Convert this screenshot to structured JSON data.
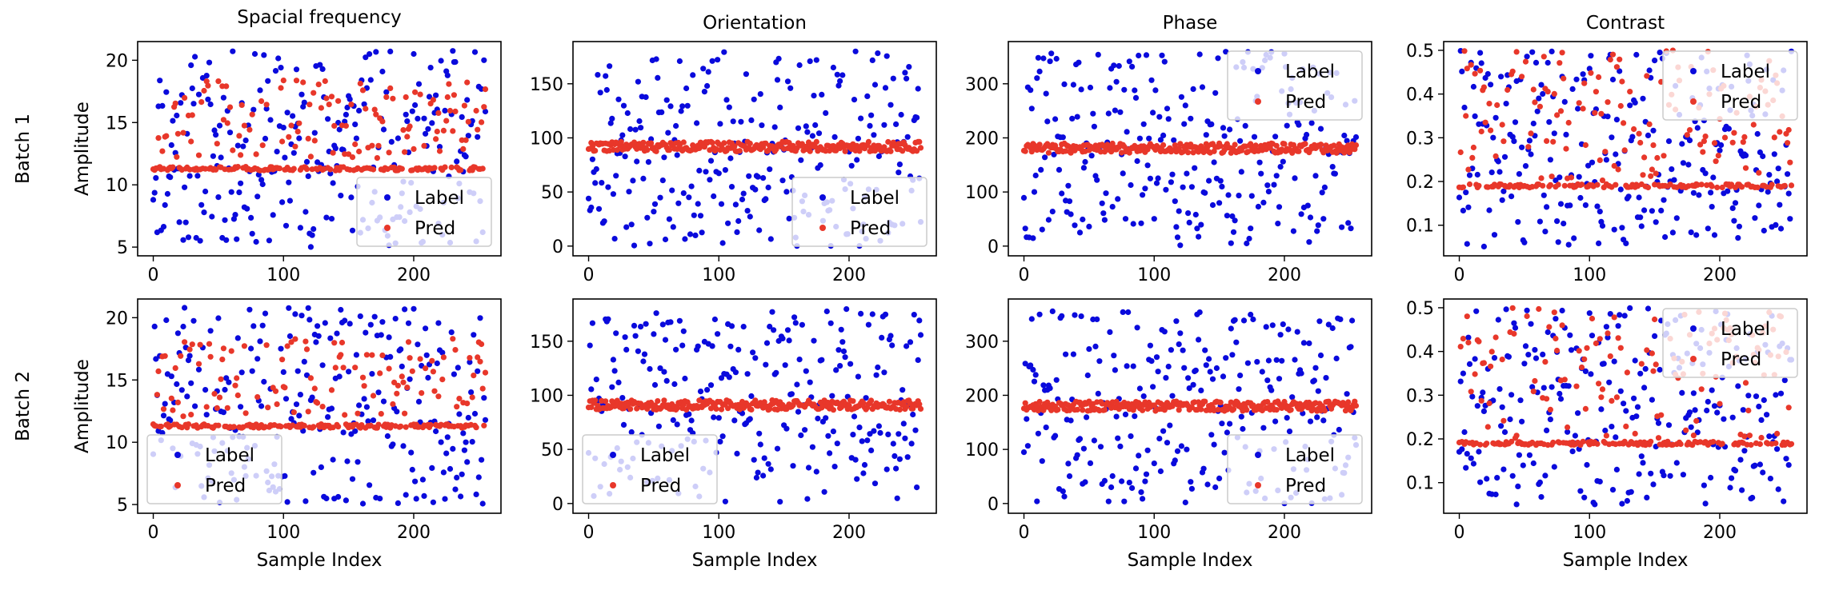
{
  "figure": {
    "row_labels": [
      "Batch 1",
      "Batch 2"
    ],
    "ylabel": "Amplitude",
    "xlabel": "Sample Index",
    "legend": [
      "Label",
      "Pred"
    ],
    "colors": {
      "label": "#0a0adc",
      "pred": "#e8372a"
    },
    "columns": [
      "Spacial frequency",
      "Orientation",
      "Phase",
      "Contrast"
    ]
  },
  "chart_data": [
    {
      "type": "scatter",
      "title": "Spacial frequency",
      "row": "Batch 1",
      "xlabel": "",
      "ylabel": "Amplitude",
      "xlim": [
        -12,
        267
      ],
      "ylim": [
        4.3,
        21.5
      ],
      "xticks": [
        0,
        100,
        200
      ],
      "yticks": [
        5,
        10,
        15,
        20
      ],
      "legend": "lower right",
      "n": 256,
      "series": [
        {
          "name": "Label",
          "style": "uniform",
          "range": [
            5,
            20.8
          ],
          "seed": 11
        },
        {
          "name": "Pred",
          "style": "baseline",
          "base": 11.3,
          "jitter": 0.15,
          "spread": 0.55,
          "high": [
            12,
            18.5
          ],
          "seed": 12
        }
      ]
    },
    {
      "type": "scatter",
      "title": "Orientation",
      "row": "Batch 1",
      "xlabel": "",
      "ylabel": "",
      "xlim": [
        -12,
        267
      ],
      "ylim": [
        -9,
        189
      ],
      "xticks": [
        0,
        100,
        200
      ],
      "yticks": [
        0,
        50,
        100,
        150
      ],
      "legend": "lower right",
      "n": 256,
      "series": [
        {
          "name": "Label",
          "style": "uniform",
          "range": [
            0,
            180
          ],
          "seed": 21
        },
        {
          "name": "Pred",
          "style": "band",
          "base": 92,
          "jitter": 4.5,
          "seed": 22
        }
      ]
    },
    {
      "type": "scatter",
      "title": "Phase",
      "row": "Batch 1",
      "xlabel": "",
      "ylabel": "",
      "xlim": [
        -12,
        267
      ],
      "ylim": [
        -18,
        378
      ],
      "xticks": [
        0,
        100,
        200
      ],
      "yticks": [
        0,
        100,
        200,
        300
      ],
      "legend": "upper right",
      "n": 256,
      "series": [
        {
          "name": "Label",
          "style": "uniform",
          "range": [
            0,
            360
          ],
          "seed": 31
        },
        {
          "name": "Pred",
          "style": "band",
          "base": 181,
          "jitter": 9,
          "seed": 32
        }
      ]
    },
    {
      "type": "scatter",
      "title": "Contrast",
      "row": "Batch 1",
      "xlabel": "",
      "ylabel": "",
      "xlim": [
        -12,
        267
      ],
      "ylim": [
        0.03,
        0.52
      ],
      "xticks": [
        0,
        100,
        200
      ],
      "yticks": [
        0.1,
        0.2,
        0.3,
        0.4,
        0.5
      ],
      "legend": "upper right",
      "n": 256,
      "series": [
        {
          "name": "Label",
          "style": "uniform",
          "range": [
            0.05,
            0.5
          ],
          "seed": 41
        },
        {
          "name": "Pred",
          "style": "baseline",
          "base": 0.19,
          "jitter": 0.004,
          "spread": 0.5,
          "high": [
            0.2,
            0.5
          ],
          "seed": 42
        }
      ]
    },
    {
      "type": "scatter",
      "title": "",
      "row": "Batch 2",
      "xlabel": "Sample Index",
      "ylabel": "Amplitude",
      "xlim": [
        -12,
        267
      ],
      "ylim": [
        4.3,
        21.5
      ],
      "xticks": [
        0,
        100,
        200
      ],
      "yticks": [
        5,
        10,
        15,
        20
      ],
      "legend": "lower left",
      "n": 256,
      "series": [
        {
          "name": "Label",
          "style": "uniform",
          "range": [
            5,
            20.8
          ],
          "seed": 51
        },
        {
          "name": "Pred",
          "style": "baseline",
          "base": 11.3,
          "jitter": 0.15,
          "spread": 0.55,
          "high": [
            12,
            18.5
          ],
          "seed": 52
        }
      ]
    },
    {
      "type": "scatter",
      "title": "",
      "row": "Batch 2",
      "xlabel": "Sample Index",
      "ylabel": "",
      "xlim": [
        -12,
        267
      ],
      "ylim": [
        -9,
        189
      ],
      "xticks": [
        0,
        100,
        200
      ],
      "yticks": [
        0,
        50,
        100,
        150
      ],
      "legend": "lower left",
      "n": 256,
      "series": [
        {
          "name": "Label",
          "style": "uniform",
          "range": [
            0,
            180
          ],
          "seed": 61
        },
        {
          "name": "Pred",
          "style": "band",
          "base": 91,
          "jitter": 4.5,
          "seed": 62
        }
      ]
    },
    {
      "type": "scatter",
      "title": "",
      "row": "Batch 2",
      "xlabel": "Sample Index",
      "ylabel": "",
      "xlim": [
        -12,
        267
      ],
      "ylim": [
        -18,
        378
      ],
      "xticks": [
        0,
        100,
        200
      ],
      "yticks": [
        0,
        100,
        200,
        300
      ],
      "legend": "lower right",
      "n": 256,
      "series": [
        {
          "name": "Label",
          "style": "uniform",
          "range": [
            0,
            360
          ],
          "seed": 71
        },
        {
          "name": "Pred",
          "style": "band",
          "base": 180,
          "jitter": 9,
          "seed": 72
        }
      ]
    },
    {
      "type": "scatter",
      "title": "",
      "row": "Batch 2",
      "xlabel": "Sample Index",
      "ylabel": "",
      "xlim": [
        -12,
        267
      ],
      "ylim": [
        0.03,
        0.52
      ],
      "xticks": [
        0,
        100,
        200
      ],
      "yticks": [
        0.1,
        0.2,
        0.3,
        0.4,
        0.5
      ],
      "legend": "upper right",
      "n": 256,
      "series": [
        {
          "name": "Label",
          "style": "uniform",
          "range": [
            0.05,
            0.5
          ],
          "seed": 81
        },
        {
          "name": "Pred",
          "style": "baseline",
          "base": 0.19,
          "jitter": 0.004,
          "spread": 0.5,
          "high": [
            0.2,
            0.5
          ],
          "seed": 82
        }
      ]
    }
  ]
}
